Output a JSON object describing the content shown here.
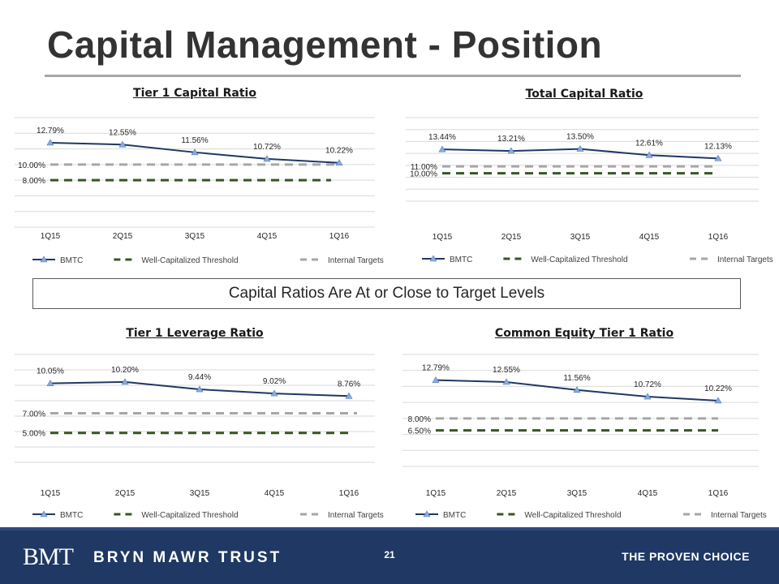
{
  "slide": {
    "title": "Capital Management - Position",
    "banner": "Capital Ratios Are At or Close to Target Levels",
    "page_number": "21"
  },
  "footer": {
    "logo_mark": "BMT",
    "logo_text": "BRYN MAWR TRUST",
    "tagline": "THE PROVEN CHOICE"
  },
  "colors": {
    "bmtc": "#4f81bd",
    "bmtc_marker": "#8eaadb",
    "threshold": "#375623",
    "target": "#a6a6a6",
    "grid": "#d9d9d9",
    "footer": "#1f3864"
  },
  "chart_data": [
    {
      "type": "line",
      "title": "Tier 1 Capital Ratio",
      "categories": [
        "1Q15",
        "2Q15",
        "3Q15",
        "4Q15",
        "1Q16"
      ],
      "series": [
        {
          "name": "BMTC",
          "values": [
            12.79,
            12.55,
            11.56,
            10.72,
            10.22
          ],
          "labels": [
            "12.79%",
            "12.55%",
            "11.56%",
            "10.72%",
            "10.22%"
          ]
        },
        {
          "name": "Well-Capitalized Threshold",
          "values": [
            8.0,
            8.0,
            8.0,
            8.0,
            8.0
          ],
          "label": "8.00%"
        },
        {
          "name": "Internal Targets",
          "values": [
            10.0,
            10.0,
            10.0,
            10.0,
            10.0
          ],
          "label": "10.00%"
        }
      ],
      "ylim": [
        2,
        16
      ],
      "grid": true,
      "legend": "bottom"
    },
    {
      "type": "line",
      "title": "Total Capital Ratio",
      "categories": [
        "1Q15",
        "2Q15",
        "3Q15",
        "4Q15",
        "1Q16"
      ],
      "series": [
        {
          "name": "BMTC",
          "values": [
            13.44,
            13.21,
            13.5,
            12.61,
            12.13
          ],
          "labels": [
            "13.44%",
            "13.21%",
            "13.50%",
            "12.61%",
            "12.13%"
          ]
        },
        {
          "name": "Well-Capitalized Threshold",
          "values": [
            10.0,
            10.0,
            10.0,
            10.0,
            10.0
          ],
          "label": "10.00%"
        },
        {
          "name": "Internal Targets",
          "values": [
            11.0,
            11.0,
            11.0,
            11.0,
            11.0
          ],
          "label": "11.00%"
        }
      ],
      "ylim": [
        6,
        18
      ],
      "grid": true,
      "legend": "bottom"
    },
    {
      "type": "line",
      "title": "Tier 1 Leverage Ratio",
      "categories": [
        "1Q15",
        "2Q15",
        "3Q15",
        "4Q15",
        "1Q16"
      ],
      "series": [
        {
          "name": "BMTC",
          "values": [
            10.05,
            10.2,
            9.44,
            9.02,
            8.76
          ],
          "labels": [
            "10.05%",
            "10.20%",
            "9.44%",
            "9.02%",
            "8.76%"
          ]
        },
        {
          "name": "Well-Capitalized Threshold",
          "values": [
            5.0,
            5.0,
            5.0,
            5.0,
            5.0
          ],
          "label": "5.00%"
        },
        {
          "name": "Internal Targets",
          "values": [
            7.0,
            7.0,
            7.0,
            7.0,
            7.0
          ],
          "label": "7.00%"
        }
      ],
      "ylim": [
        2,
        13
      ],
      "grid": true,
      "legend": "bottom"
    },
    {
      "type": "line",
      "title": "Common Equity Tier 1 Ratio",
      "categories": [
        "1Q15",
        "2Q15",
        "3Q15",
        "4Q15",
        "1Q16"
      ],
      "series": [
        {
          "name": "BMTC",
          "values": [
            12.79,
            12.55,
            11.56,
            10.72,
            10.22
          ],
          "labels": [
            "12.79%",
            "12.55%",
            "11.56%",
            "10.72%",
            "10.22%"
          ]
        },
        {
          "name": "Well-Capitalized Threshold",
          "values": [
            6.5,
            6.5,
            6.5,
            6.5,
            6.5
          ],
          "label": "6.50%"
        },
        {
          "name": "Internal Targets",
          "values": [
            8.0,
            8.0,
            8.0,
            8.0,
            8.0
          ],
          "label": "8.00%"
        }
      ],
      "ylim": [
        2,
        16
      ],
      "grid": true,
      "legend": "bottom"
    }
  ]
}
